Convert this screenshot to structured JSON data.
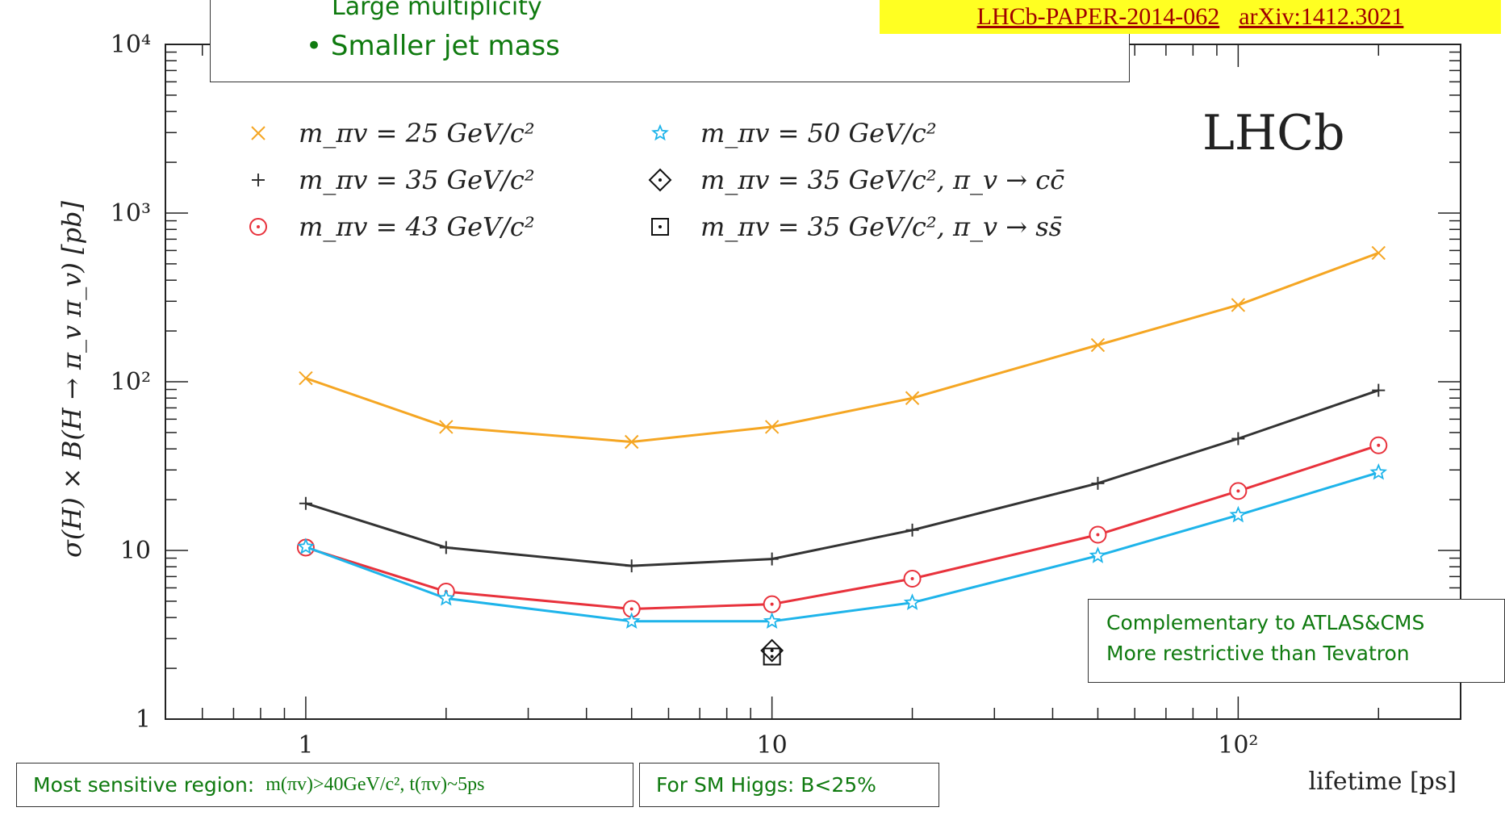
{
  "header": {
    "bullets": [
      "Large multiplicity",
      "Smaller jet mass"
    ],
    "references": [
      "LHCb-PAPER-2014-062",
      "arXiv:1412.3021"
    ]
  },
  "chart_data": {
    "type": "line",
    "brand_label": "LHCb",
    "xlabel": "lifetime [ps]",
    "ylabel": "σ(H) × B(H → π_v π_v) [pb]",
    "xscale": "log",
    "yscale": "log",
    "xlim": [
      0.5,
      300
    ],
    "ylim": [
      1,
      10000
    ],
    "x_tick_labels": [
      "1",
      "10",
      "10²"
    ],
    "y_tick_labels": [
      "1",
      "10",
      "10²",
      "10³",
      "10⁴"
    ],
    "legend_position": "top-left",
    "series": [
      {
        "name": "m_πv = 25 GeV/c²",
        "color": "#f5a623",
        "marker": "x",
        "x": [
          1,
          2,
          5,
          10,
          20,
          50,
          100,
          200
        ],
        "values": [
          105,
          54,
          44,
          54,
          80,
          165,
          285,
          580
        ]
      },
      {
        "name": "m_πv = 35 GeV/c²",
        "color": "#333333",
        "marker": "plus",
        "x": [
          1,
          2,
          5,
          10,
          20,
          50,
          100,
          200
        ],
        "values": [
          19,
          10.4,
          8.1,
          8.9,
          13.2,
          25,
          46,
          89
        ]
      },
      {
        "name": "m_πv = 43 GeV/c²",
        "color": "#e8323c",
        "marker": "circle-dot",
        "x": [
          1,
          2,
          5,
          10,
          20,
          50,
          100,
          200
        ],
        "values": [
          10.4,
          5.7,
          4.5,
          4.8,
          6.8,
          12.4,
          22.5,
          42
        ]
      },
      {
        "name": "m_πv = 50 GeV/c²",
        "color": "#1eb4ea",
        "marker": "star",
        "x": [
          1,
          2,
          5,
          10,
          20,
          50,
          100,
          200
        ],
        "values": [
          10.5,
          5.2,
          3.8,
          3.8,
          4.9,
          9.3,
          16.2,
          29
        ]
      },
      {
        "name": "m_πv = 35 GeV/c², π_v → cc̄",
        "color": "#111111",
        "marker": "diamond-dot",
        "x": [
          10
        ],
        "values": [
          2.55
        ]
      },
      {
        "name": "m_πv = 35 GeV/c², π_v → ss̄",
        "color": "#111111",
        "marker": "square-dot",
        "x": [
          10
        ],
        "values": [
          2.35
        ]
      }
    ]
  },
  "annotations": {
    "complementary": [
      "Complementary to ATLAS&CMS",
      "More restrictive than Tevatron"
    ],
    "sensitive_label": "Most sensitive region:",
    "sensitive_value": "m(πv)>40GeV/c², t(πv)~5ps",
    "sm_higgs": "For SM Higgs:  B<25%"
  }
}
